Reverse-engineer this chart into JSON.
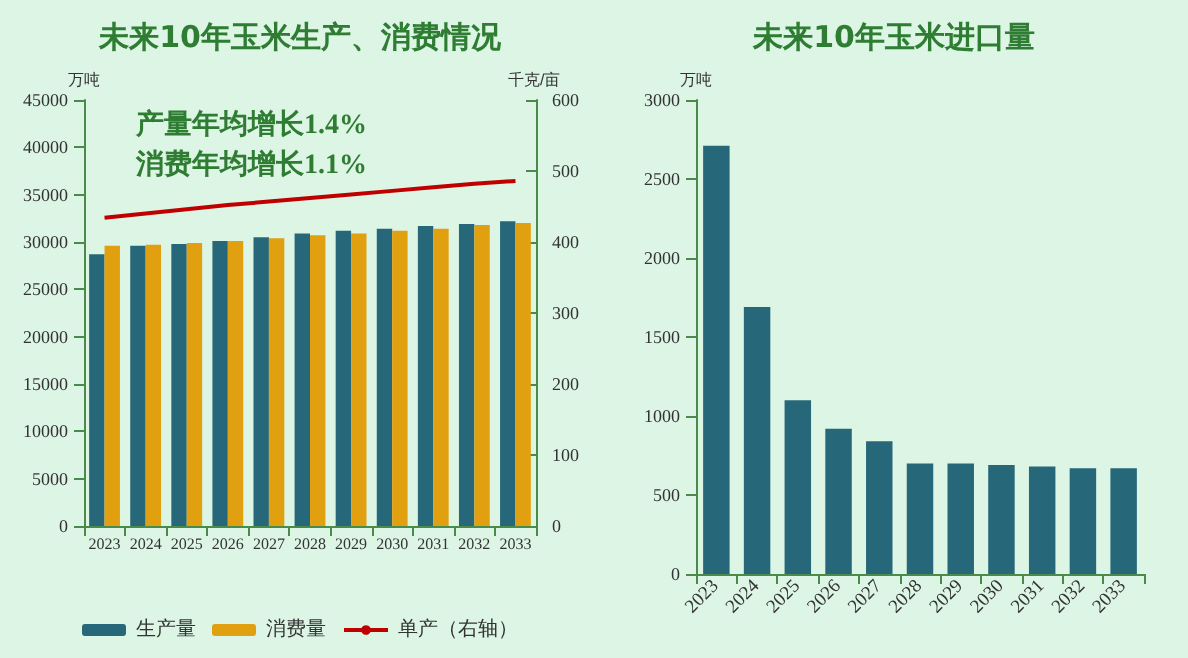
{
  "chart_data": [
    {
      "type": "bar",
      "title": "未来10年玉米生产、消费情况",
      "ylabel": "万吨",
      "y2label": "千克/亩",
      "categories": [
        "2023",
        "2024",
        "2025",
        "2026",
        "2027",
        "2028",
        "2029",
        "2030",
        "2031",
        "2032",
        "2033"
      ],
      "series": [
        {
          "name": "生产量",
          "color": "#26687a",
          "values": [
            28700,
            29600,
            29800,
            30100,
            30500,
            30900,
            31200,
            31400,
            31700,
            31900,
            32200
          ]
        },
        {
          "name": "消费量",
          "color": "#e0a010",
          "values": [
            29600,
            29700,
            29900,
            30100,
            30400,
            30700,
            30900,
            31200,
            31400,
            31800,
            32000
          ]
        },
        {
          "name": "单产（右轴）",
          "type": "line",
          "axis": "y2",
          "color": "#c00000",
          "values": [
            434,
            440,
            446,
            452,
            457,
            462,
            467,
            472,
            477,
            482,
            486
          ]
        }
      ],
      "ylim": [
        0,
        45000
      ],
      "yticks": [
        0,
        5000,
        10000,
        15000,
        20000,
        25000,
        30000,
        35000,
        40000,
        45000
      ],
      "y2lim": [
        0,
        600
      ],
      "y2ticks": [
        0,
        100,
        200,
        300,
        400,
        500,
        600
      ],
      "annotations": [
        "产量年均增长1.4%",
        "消费年均增长1.1%"
      ],
      "legend": "bottom",
      "grid": false,
      "marker": "none"
    },
    {
      "type": "bar",
      "title": "未来10年玉米进口量",
      "ylabel": "万吨",
      "categories": [
        "2023",
        "2024",
        "2025",
        "2026",
        "2027",
        "2028",
        "2029",
        "2030",
        "2031",
        "2032",
        "2033"
      ],
      "series": [
        {
          "color": "#26687a",
          "values": [
            2710,
            1690,
            1100,
            920,
            840,
            700,
            700,
            690,
            680,
            670,
            670
          ]
        }
      ],
      "ylim": [
        0,
        3000
      ],
      "yticks": [
        0,
        500,
        1000,
        1500,
        2000,
        2500,
        3000
      ],
      "grid": false
    }
  ]
}
